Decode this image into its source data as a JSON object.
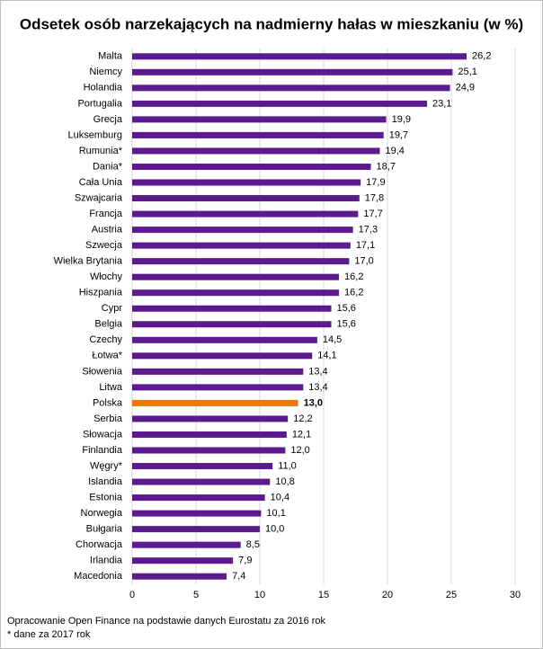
{
  "chart_data": {
    "type": "bar",
    "orientation": "horizontal",
    "title": "Odsetek osób narzekających na nadmierny hałas w mieszkaniu (w %)",
    "categories": [
      "Malta",
      "Niemcy",
      "Holandia",
      "Portugalia",
      "Grecja",
      "Luksemburg",
      "Rumunia*",
      "Dania*",
      "Cała Unia",
      "Szwajcaria",
      "Francja",
      "Austria",
      "Szwecja",
      "Wielka Brytania",
      "Włochy",
      "Hiszpania",
      "Cypr",
      "Belgia",
      "Czechy",
      "Łotwa*",
      "Słowenia",
      "Litwa",
      "Polska",
      "Serbia",
      "Słowacja",
      "Finlandia",
      "Węgry*",
      "Islandia",
      "Estonia",
      "Norwegia",
      "Bułgaria",
      "Chorwacja",
      "Irlandia",
      "Macedonia"
    ],
    "values": [
      26.2,
      25.1,
      24.9,
      23.1,
      19.9,
      19.7,
      19.4,
      18.7,
      17.9,
      17.8,
      17.7,
      17.3,
      17.1,
      17.0,
      16.2,
      16.2,
      15.6,
      15.6,
      14.5,
      14.1,
      13.4,
      13.4,
      13.0,
      12.2,
      12.1,
      12.0,
      11.0,
      10.8,
      10.4,
      10.1,
      10.0,
      8.5,
      7.9,
      7.4
    ],
    "value_labels": [
      "26,2",
      "25,1",
      "24,9",
      "23,1",
      "19,9",
      "19,7",
      "19,4",
      "18,7",
      "17,9",
      "17,8",
      "17,7",
      "17,3",
      "17,1",
      "17,0",
      "16,2",
      "16,2",
      "15,6",
      "15,6",
      "14,5",
      "14,1",
      "13,4",
      "13,4",
      "13,0",
      "12,2",
      "12,1",
      "12,0",
      "11,0",
      "10,8",
      "10,4",
      "10,1",
      "10,0",
      "8,5",
      "7,9",
      "7,4"
    ],
    "color": "#5b1a8e",
    "highlight_category": "Polska",
    "highlight_color": "#f07800",
    "xlim": [
      0,
      30
    ],
    "xticks": [
      0,
      5,
      10,
      15,
      20,
      25,
      30
    ],
    "grid": true,
    "notes": [
      "Opracowanie Open Finance na podstawie danych Eurostatu za 2016 rok",
      "* dane za 2017 rok"
    ]
  }
}
